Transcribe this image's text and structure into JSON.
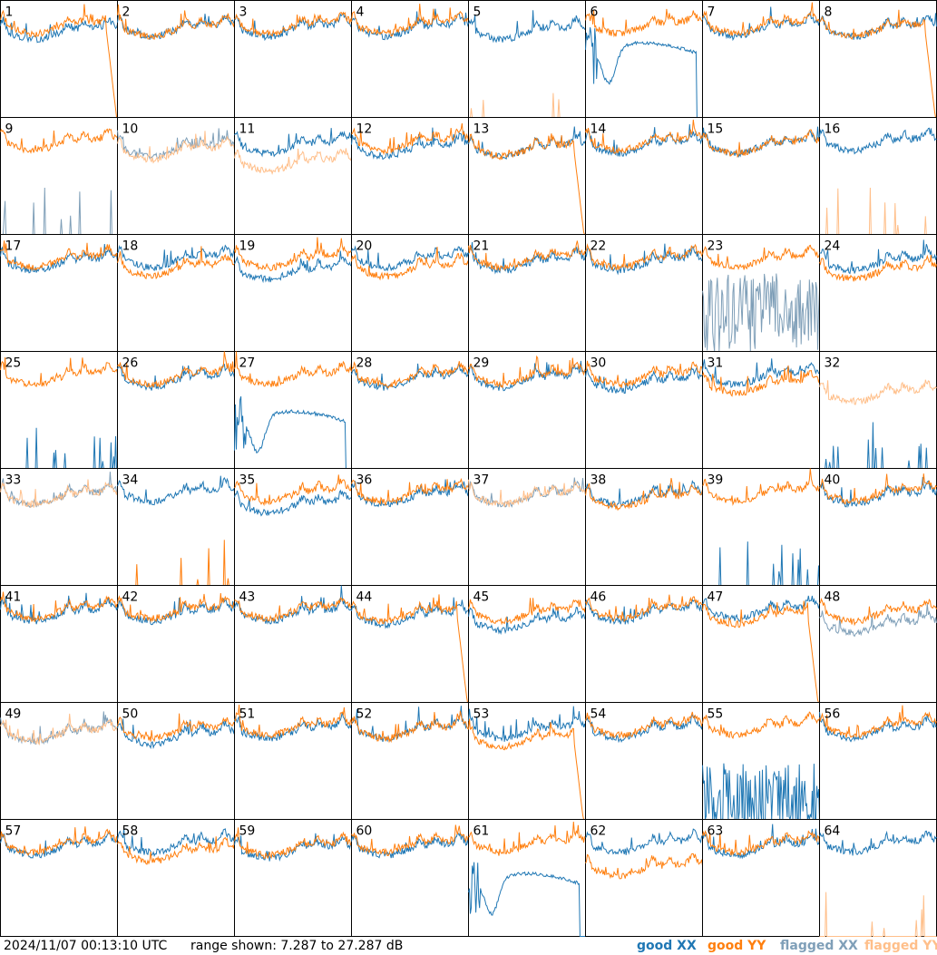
{
  "chart_data": {
    "type": "line",
    "grid": {
      "rows": 8,
      "cols": 8
    },
    "y_range_db": [
      7.287,
      27.287
    ],
    "x_range": [
      0,
      1
    ],
    "timestamp": "2024/11/07 00:13:10 UTC",
    "range_label": "range shown: 7.287 to 27.287 dB",
    "legend": [
      {
        "name": "good XX",
        "color": "#1f77b4"
      },
      {
        "name": "good YY",
        "color": "#ff7f0e"
      },
      {
        "name": "flagged XX",
        "color": "#7f9fb8"
      },
      {
        "name": "flagged YY",
        "color": "#ffbf8a"
      }
    ],
    "colors": {
      "good_xx": "#1f77b4",
      "good_yy": "#ff7f0e",
      "flagged_xx": "#7f9fb8",
      "flagged_yy": "#ffbf8a"
    },
    "tiles": [
      {
        "label": "1",
        "xx": "good",
        "yy": "good",
        "xx_shape": "normal",
        "yy_shape": "fall",
        "xx_level": 22,
        "yy_level": 23
      },
      {
        "label": "2",
        "xx": "good",
        "yy": "good",
        "xx_shape": "normal",
        "yy_shape": "normal",
        "xx_level": 22.5,
        "yy_level": 22.5
      },
      {
        "label": "3",
        "xx": "good",
        "yy": "good",
        "xx_shape": "normal",
        "yy_shape": "normal",
        "xx_level": 22.5,
        "yy_level": 23
      },
      {
        "label": "4",
        "xx": "good",
        "yy": "good",
        "xx_shape": "normal",
        "yy_shape": "normal",
        "xx_level": 22.5,
        "yy_level": 23
      },
      {
        "label": "5",
        "xx": "good",
        "yy": "flagged",
        "xx_shape": "normal",
        "yy_shape": "spikes",
        "xx_level": 22,
        "yy_level": 8
      },
      {
        "label": "6",
        "xx": "good",
        "yy": "good",
        "xx_shape": "deep",
        "yy_shape": "normal",
        "xx_level": 18,
        "yy_level": 23
      },
      {
        "label": "7",
        "xx": "good",
        "yy": "good",
        "xx_shape": "normal",
        "yy_shape": "normal",
        "xx_level": 22.5,
        "yy_level": 23
      },
      {
        "label": "8",
        "xx": "good",
        "yy": "good",
        "xx_shape": "normal",
        "yy_shape": "fall",
        "xx_level": 22.5,
        "yy_level": 22.5
      },
      {
        "label": "9",
        "xx": "flagged",
        "yy": "good",
        "xx_shape": "spikes",
        "yy_shape": "normal",
        "xx_level": 9,
        "yy_level": 23
      },
      {
        "label": "10",
        "xx": "flagged",
        "yy": "flagged",
        "xx_shape": "normal",
        "yy_shape": "normal",
        "xx_level": 22,
        "yy_level": 21.5
      },
      {
        "label": "11",
        "xx": "good",
        "yy": "flagged",
        "xx_shape": "normal",
        "yy_shape": "normal",
        "xx_level": 22.5,
        "yy_level": 19.5
      },
      {
        "label": "12",
        "xx": "good",
        "yy": "good",
        "xx_shape": "normal",
        "yy_shape": "normal",
        "xx_level": 22,
        "yy_level": 23
      },
      {
        "label": "13",
        "xx": "good",
        "yy": "good",
        "xx_shape": "normal",
        "yy_shape": "fall",
        "xx_level": 22,
        "yy_level": 22
      },
      {
        "label": "14",
        "xx": "good",
        "yy": "good",
        "xx_shape": "normal",
        "yy_shape": "normal",
        "xx_level": 22.5,
        "yy_level": 23
      },
      {
        "label": "15",
        "xx": "good",
        "yy": "good",
        "xx_shape": "normal",
        "yy_shape": "normal",
        "xx_level": 22.5,
        "yy_level": 22.5
      },
      {
        "label": "16",
        "xx": "good",
        "yy": "flagged",
        "xx_shape": "normal",
        "yy_shape": "spikes",
        "xx_level": 23,
        "yy_level": 8
      },
      {
        "label": "17",
        "xx": "good",
        "yy": "good",
        "xx_shape": "normal",
        "yy_shape": "normal",
        "xx_level": 22.5,
        "yy_level": 23
      },
      {
        "label": "18",
        "xx": "good",
        "yy": "good",
        "xx_shape": "normal",
        "yy_shape": "normal",
        "xx_level": 23,
        "yy_level": 21.5
      },
      {
        "label": "19",
        "xx": "good",
        "yy": "good",
        "xx_shape": "normal",
        "yy_shape": "normal",
        "xx_level": 21,
        "yy_level": 23
      },
      {
        "label": "20",
        "xx": "good",
        "yy": "good",
        "xx_shape": "normal",
        "yy_shape": "normal",
        "xx_level": 23,
        "yy_level": 21.5
      },
      {
        "label": "21",
        "xx": "good",
        "yy": "good",
        "xx_shape": "normal",
        "yy_shape": "normal",
        "xx_level": 22.5,
        "yy_level": 23
      },
      {
        "label": "22",
        "xx": "good",
        "yy": "good",
        "xx_shape": "normal",
        "yy_shape": "normal",
        "xx_level": 22.5,
        "yy_level": 23
      },
      {
        "label": "23",
        "xx": "flagged",
        "yy": "good",
        "xx_shape": "noisy",
        "yy_shape": "normal",
        "xx_level": 14,
        "yy_level": 23
      },
      {
        "label": "24",
        "xx": "good",
        "yy": "good",
        "xx_shape": "normal",
        "yy_shape": "normal",
        "xx_level": 22.5,
        "yy_level": 21
      },
      {
        "label": "25",
        "xx": "good",
        "yy": "good",
        "xx_shape": "spikes",
        "yy_shape": "normal",
        "xx_level": 8,
        "yy_level": 23
      },
      {
        "label": "26",
        "xx": "good",
        "yy": "good",
        "xx_shape": "normal",
        "yy_shape": "normal",
        "xx_level": 22.5,
        "yy_level": 23
      },
      {
        "label": "27",
        "xx": "good",
        "yy": "good",
        "xx_shape": "deep",
        "yy_shape": "normal",
        "xx_level": 15,
        "yy_level": 23
      },
      {
        "label": "28",
        "xx": "good",
        "yy": "good",
        "xx_shape": "normal",
        "yy_shape": "normal",
        "xx_level": 22.5,
        "yy_level": 23
      },
      {
        "label": "29",
        "xx": "good",
        "yy": "good",
        "xx_shape": "normal",
        "yy_shape": "normal",
        "xx_level": 22.5,
        "yy_level": 23
      },
      {
        "label": "30",
        "xx": "good",
        "yy": "good",
        "xx_shape": "normal",
        "yy_shape": "normal",
        "xx_level": 22,
        "yy_level": 23
      },
      {
        "label": "31",
        "xx": "good",
        "yy": "good",
        "xx_shape": "normal",
        "yy_shape": "normal",
        "xx_level": 23,
        "yy_level": 21.5
      },
      {
        "label": "32",
        "xx": "good",
        "yy": "flagged",
        "xx_shape": "spikes",
        "yy_shape": "normal",
        "xx_level": 8,
        "yy_level": 20
      },
      {
        "label": "33",
        "xx": "flagged",
        "yy": "flagged",
        "xx_shape": "normal",
        "yy_shape": "normal",
        "xx_level": 22.5,
        "yy_level": 22.5
      },
      {
        "label": "34",
        "xx": "good",
        "yy": "good",
        "xx_shape": "normal",
        "yy_shape": "spikes",
        "xx_level": 23,
        "yy_level": 8
      },
      {
        "label": "35",
        "xx": "good",
        "yy": "good",
        "xx_shape": "normal",
        "yy_shape": "normal",
        "xx_level": 21,
        "yy_level": 23
      },
      {
        "label": "36",
        "xx": "good",
        "yy": "good",
        "xx_shape": "normal",
        "yy_shape": "normal",
        "xx_level": 22.5,
        "yy_level": 23
      },
      {
        "label": "37",
        "xx": "flagged",
        "yy": "flagged",
        "xx_shape": "normal",
        "yy_shape": "normal",
        "xx_level": 22.5,
        "yy_level": 22.5
      },
      {
        "label": "38",
        "xx": "good",
        "yy": "good",
        "xx_shape": "normal",
        "yy_shape": "normal",
        "xx_level": 22.5,
        "yy_level": 22
      },
      {
        "label": "39",
        "xx": "good",
        "yy": "good",
        "xx_shape": "spikes",
        "yy_shape": "normal",
        "xx_level": 8,
        "yy_level": 23
      },
      {
        "label": "40",
        "xx": "good",
        "yy": "good",
        "xx_shape": "normal",
        "yy_shape": "normal",
        "xx_level": 22.5,
        "yy_level": 23
      },
      {
        "label": "41",
        "xx": "good",
        "yy": "good",
        "xx_shape": "normal",
        "yy_shape": "normal",
        "xx_level": 22.5,
        "yy_level": 23
      },
      {
        "label": "42",
        "xx": "good",
        "yy": "good",
        "xx_shape": "normal",
        "yy_shape": "normal",
        "xx_level": 22.5,
        "yy_level": 23
      },
      {
        "label": "43",
        "xx": "good",
        "yy": "good",
        "xx_shape": "normal",
        "yy_shape": "normal",
        "xx_level": 22.5,
        "yy_level": 23
      },
      {
        "label": "44",
        "xx": "good",
        "yy": "good",
        "xx_shape": "normal",
        "yy_shape": "fall",
        "xx_level": 22,
        "yy_level": 22.5
      },
      {
        "label": "45",
        "xx": "good",
        "yy": "good",
        "xx_shape": "normal",
        "yy_shape": "normal",
        "xx_level": 21,
        "yy_level": 22.5
      },
      {
        "label": "46",
        "xx": "good",
        "yy": "good",
        "xx_shape": "normal",
        "yy_shape": "normal",
        "xx_level": 22.5,
        "yy_level": 23
      },
      {
        "label": "47",
        "xx": "good",
        "yy": "good",
        "xx_shape": "normal",
        "yy_shape": "fall",
        "xx_level": 23,
        "yy_level": 22
      },
      {
        "label": "48",
        "xx": "flagged",
        "yy": "good",
        "xx_shape": "normal",
        "yy_shape": "normal",
        "xx_level": 20.5,
        "yy_level": 22.5
      },
      {
        "label": "49",
        "xx": "flagged",
        "yy": "flagged",
        "xx_shape": "normal",
        "yy_shape": "normal",
        "xx_level": 22,
        "yy_level": 22
      },
      {
        "label": "50",
        "xx": "good",
        "yy": "good",
        "xx_shape": "normal",
        "yy_shape": "normal",
        "xx_level": 21.5,
        "yy_level": 22.5
      },
      {
        "label": "51",
        "xx": "good",
        "yy": "good",
        "xx_shape": "normal",
        "yy_shape": "normal",
        "xx_level": 22.5,
        "yy_level": 23
      },
      {
        "label": "52",
        "xx": "good",
        "yy": "good",
        "xx_shape": "normal",
        "yy_shape": "normal",
        "xx_level": 22.5,
        "yy_level": 22.5
      },
      {
        "label": "53",
        "xx": "good",
        "yy": "good",
        "xx_shape": "normal",
        "yy_shape": "fall",
        "xx_level": 22.5,
        "yy_level": 21
      },
      {
        "label": "54",
        "xx": "good",
        "yy": "good",
        "xx_shape": "normal",
        "yy_shape": "normal",
        "xx_level": 22.5,
        "yy_level": 23
      },
      {
        "label": "55",
        "xx": "good",
        "yy": "good",
        "xx_shape": "noisy",
        "yy_shape": "normal",
        "xx_level": 10,
        "yy_level": 23
      },
      {
        "label": "56",
        "xx": "good",
        "yy": "good",
        "xx_shape": "normal",
        "yy_shape": "normal",
        "xx_level": 22.5,
        "yy_level": 23
      },
      {
        "label": "57",
        "xx": "good",
        "yy": "good",
        "xx_shape": "normal",
        "yy_shape": "normal",
        "xx_level": 22.5,
        "yy_level": 23
      },
      {
        "label": "58",
        "xx": "good",
        "yy": "good",
        "xx_shape": "normal",
        "yy_shape": "normal",
        "xx_level": 23,
        "yy_level": 21.5
      },
      {
        "label": "59",
        "xx": "good",
        "yy": "good",
        "xx_shape": "normal",
        "yy_shape": "normal",
        "xx_level": 22,
        "yy_level": 22.5
      },
      {
        "label": "60",
        "xx": "good",
        "yy": "good",
        "xx_shape": "normal",
        "yy_shape": "normal",
        "xx_level": 22.5,
        "yy_level": 23
      },
      {
        "label": "61",
        "xx": "good",
        "yy": "good",
        "xx_shape": "deep",
        "yy_shape": "normal",
        "xx_level": 16,
        "yy_level": 23
      },
      {
        "label": "62",
        "xx": "good",
        "yy": "good",
        "xx_shape": "normal",
        "yy_shape": "normal",
        "xx_level": 23,
        "yy_level": 19
      },
      {
        "label": "63",
        "xx": "good",
        "yy": "good",
        "xx_shape": "normal",
        "yy_shape": "normal",
        "xx_level": 22.5,
        "yy_level": 23
      },
      {
        "label": "64",
        "xx": "good",
        "yy": "flagged",
        "xx_shape": "normal",
        "yy_shape": "spikes",
        "xx_level": 23,
        "yy_level": 8
      }
    ]
  }
}
